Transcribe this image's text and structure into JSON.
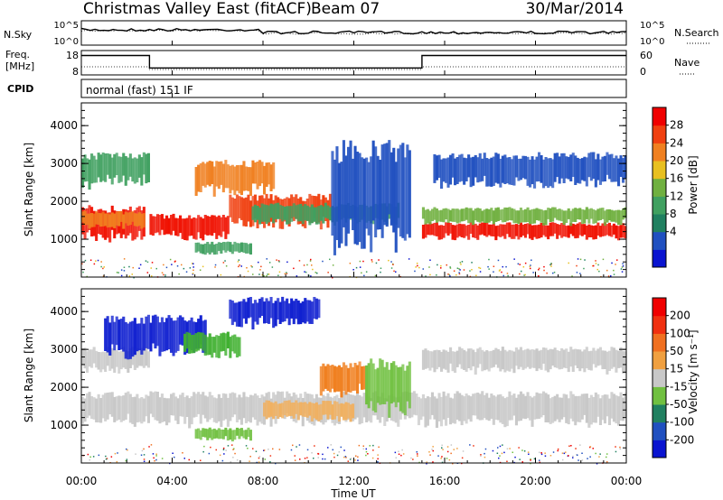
{
  "header": {
    "station": "Christmas Valley East (fitACF)",
    "beam": "Beam 07",
    "date": "30/Mar/2014"
  },
  "sky_panel": {
    "left_label": "N.Sky",
    "right_label": "N.Search",
    "ticks_left": [
      "10^5",
      "10^0"
    ],
    "ticks_right": [
      "10^5",
      "10^0"
    ]
  },
  "freq_panel": {
    "left_label_1": "Freq.",
    "left_label_2": "[MHz]",
    "right_label": "Nave",
    "ticks_left": [
      "18",
      "8"
    ],
    "ticks_right": [
      "60",
      "0"
    ],
    "freq_steps": [
      {
        "start_h": 0,
        "end_h": 3,
        "mhz": 16.5
      },
      {
        "start_h": 3,
        "end_h": 15,
        "mhz": 10.5
      },
      {
        "start_h": 15,
        "end_h": 24,
        "mhz": 16.5
      }
    ]
  },
  "cpid": {
    "label": "CPID",
    "mode": "normal (fast) 151 IF"
  },
  "time_axis": {
    "title": "Time UT",
    "ticks": [
      "00:00",
      "04:00",
      "08:00",
      "12:00",
      "16:00",
      "20:00",
      "00:00"
    ],
    "range_hours": [
      0,
      24
    ]
  },
  "chart_data": [
    {
      "type": "heatmap",
      "name": "power",
      "ylabel": "Slant Range [km]",
      "ylim": [
        0,
        4600
      ],
      "yticks": [
        "1000",
        "2000",
        "3000",
        "4000"
      ],
      "colorbar": {
        "label": "Power [dB]",
        "ticks": [
          "28",
          "24",
          "20",
          "16",
          "12",
          "8",
          "4"
        ],
        "colors": [
          "#0a14d0",
          "#2050c0",
          "#208060",
          "#40a060",
          "#70b040",
          "#e8c020",
          "#f08020",
          "#f04010",
          "#f00000"
        ]
      },
      "bands": [
        {
          "t0": 0.0,
          "t1": 2.8,
          "r0": 1000,
          "r1": 1800,
          "color": "#f01000"
        },
        {
          "t0": 0.0,
          "t1": 2.8,
          "r0": 1300,
          "r1": 1700,
          "color": "#f08020"
        },
        {
          "t0": 3.0,
          "t1": 6.5,
          "r0": 1000,
          "r1": 1600,
          "color": "#f01000"
        },
        {
          "t0": 6.5,
          "t1": 11.0,
          "r0": 1300,
          "r1": 2100,
          "color": "#f04010"
        },
        {
          "t0": 7.5,
          "t1": 14.0,
          "r0": 1400,
          "r1": 1900,
          "color": "#40a060"
        },
        {
          "t0": 15.0,
          "t1": 24.0,
          "r0": 1000,
          "r1": 1400,
          "color": "#f01000"
        },
        {
          "t0": 15.0,
          "t1": 24.0,
          "r0": 1400,
          "r1": 1800,
          "color": "#70b040"
        },
        {
          "t0": 0.0,
          "t1": 3.0,
          "r0": 2400,
          "r1": 3200,
          "color": "#40a060"
        },
        {
          "t0": 5.0,
          "t1": 8.5,
          "r0": 2200,
          "r1": 3000,
          "color": "#f08020"
        },
        {
          "t0": 15.5,
          "t1": 24.0,
          "r0": 2400,
          "r1": 3200,
          "color": "#2050c0"
        },
        {
          "t0": 11.0,
          "t1": 14.5,
          "r0": 700,
          "r1": 3300,
          "color": "#2050c0"
        },
        {
          "t0": 5.0,
          "t1": 7.5,
          "r0": 600,
          "r1": 900,
          "color": "#40a060"
        }
      ]
    },
    {
      "type": "heatmap",
      "name": "velocity",
      "ylabel": "Slant Range [km]",
      "ylim": [
        0,
        4600
      ],
      "yticks": [
        "1000",
        "2000",
        "3000",
        "4000"
      ],
      "colorbar": {
        "label": "Velocity [m s⁻¹]",
        "ticks": [
          "200",
          "100",
          "50",
          "15",
          "-15",
          "-50",
          "-100",
          "-200"
        ],
        "colors": [
          "#0a14d0",
          "#2050c0",
          "#208060",
          "#70c040",
          "#c8c8c8",
          "#f0a040",
          "#f07020",
          "#f03010",
          "#f00000"
        ]
      },
      "bands": [
        {
          "t0": 0.0,
          "t1": 24.0,
          "r0": 1000,
          "r1": 1800,
          "color": "#c8c8c8"
        },
        {
          "t0": 0.0,
          "t1": 3.0,
          "r0": 2400,
          "r1": 3000,
          "color": "#c8c8c8"
        },
        {
          "t0": 1.0,
          "t1": 5.5,
          "r0": 2800,
          "r1": 3800,
          "color": "#1020d0"
        },
        {
          "t0": 6.5,
          "t1": 10.5,
          "r0": 3600,
          "r1": 4300,
          "color": "#1020d0"
        },
        {
          "t0": 4.5,
          "t1": 7.0,
          "r0": 2800,
          "r1": 3400,
          "color": "#40b030"
        },
        {
          "t0": 10.5,
          "t1": 12.5,
          "r0": 1800,
          "r1": 2600,
          "color": "#f08020"
        },
        {
          "t0": 12.5,
          "t1": 14.5,
          "r0": 1300,
          "r1": 2600,
          "color": "#70c040"
        },
        {
          "t0": 8.0,
          "t1": 12.0,
          "r0": 1100,
          "r1": 1600,
          "color": "#f0b060"
        },
        {
          "t0": 15.0,
          "t1": 24.0,
          "r0": 2400,
          "r1": 3000,
          "color": "#c8c8c8"
        },
        {
          "t0": 5.0,
          "t1": 7.5,
          "r0": 600,
          "r1": 900,
          "color": "#70c040"
        }
      ]
    }
  ]
}
